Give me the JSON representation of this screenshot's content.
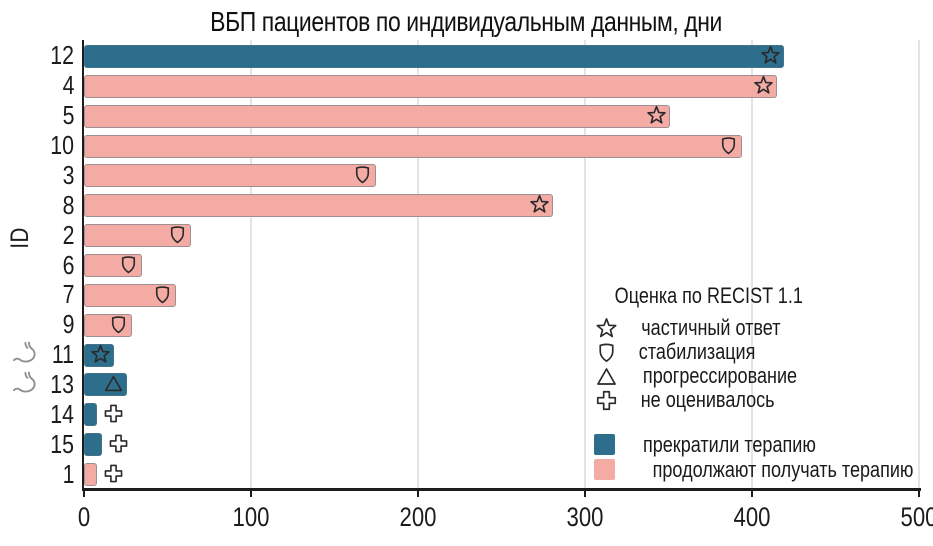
{
  "chart_data": {
    "type": "bar",
    "orientation": "horizontal",
    "title": "ВБП пациентов по индивидуальным данным, дни",
    "ylabel": "ID",
    "xlabel": "",
    "xlim": [
      0,
      500
    ],
    "x_ticks": [
      0,
      100,
      200,
      300,
      400,
      500
    ],
    "grid": "vertical-light",
    "legend_position": "center-right",
    "colors": {
      "discontinued": "#2e6e8d",
      "continuing": "#f3aba4",
      "bar_border": "#567886",
      "grid": "#e4e4e4",
      "axis": "#1c1c1c",
      "marker_stroke": "#2a2a2a",
      "stomach_icon": "#8f8f8f"
    },
    "legend": {
      "title": "Оценка по RECIST 1.1",
      "markers": [
        {
          "icon": "star-icon",
          "shape": "star",
          "label": "частичный ответ"
        },
        {
          "icon": "shield-icon",
          "shape": "shield",
          "label": "стабилизация"
        },
        {
          "icon": "triangle-icon",
          "shape": "triangle",
          "label": "прогрессирование"
        },
        {
          "icon": "cross-icon",
          "shape": "cross",
          "label": "не оценивалось"
        }
      ],
      "series": [
        {
          "color": "#2e6e8d",
          "label": "прекратили терапию"
        },
        {
          "color": "#f3aba4",
          "label": "продолжают получать терапию"
        }
      ]
    },
    "bars": [
      {
        "id": "12",
        "value": 419,
        "group": "прекратили терапию",
        "color": "#2e6e8d",
        "marker": "star",
        "marker_inside": true,
        "stomach_icon": false
      },
      {
        "id": "4",
        "value": 415,
        "group": "продолжают получать терапию",
        "color": "#f3aba4",
        "marker": "star",
        "marker_inside": true,
        "stomach_icon": false
      },
      {
        "id": "5",
        "value": 351,
        "group": "продолжают получать терапию",
        "color": "#f3aba4",
        "marker": "star",
        "marker_inside": true,
        "stomach_icon": false
      },
      {
        "id": "10",
        "value": 394,
        "group": "продолжают получать терапию",
        "color": "#f3aba4",
        "marker": "shield",
        "marker_inside": true,
        "stomach_icon": false
      },
      {
        "id": "3",
        "value": 175,
        "group": "продолжают получать терапию",
        "color": "#f3aba4",
        "marker": "shield",
        "marker_inside": true,
        "stomach_icon": false
      },
      {
        "id": "8",
        "value": 281,
        "group": "продолжают получать терапию",
        "color": "#f3aba4",
        "marker": "star",
        "marker_inside": true,
        "stomach_icon": false
      },
      {
        "id": "2",
        "value": 64,
        "group": "продолжают получать терапию",
        "color": "#f3aba4",
        "marker": "shield",
        "marker_inside": true,
        "stomach_icon": false
      },
      {
        "id": "6",
        "value": 35,
        "group": "продолжают получать терапию",
        "color": "#f3aba4",
        "marker": "shield",
        "marker_inside": true,
        "stomach_icon": false
      },
      {
        "id": "7",
        "value": 55,
        "group": "продолжают получать терапию",
        "color": "#f3aba4",
        "marker": "shield",
        "marker_inside": true,
        "stomach_icon": false
      },
      {
        "id": "9",
        "value": 29,
        "group": "продолжают получать терапию",
        "color": "#f3aba4",
        "marker": "shield",
        "marker_inside": true,
        "stomach_icon": false
      },
      {
        "id": "11",
        "value": 18,
        "group": "прекратили терапию",
        "color": "#2e6e8d",
        "marker": "star",
        "marker_inside": true,
        "stomach_icon": true
      },
      {
        "id": "13",
        "value": 26,
        "group": "прекратили терапию",
        "color": "#2e6e8d",
        "marker": "triangle",
        "marker_inside": true,
        "stomach_icon": true
      },
      {
        "id": "14",
        "value": 8,
        "group": "прекратили терапию",
        "color": "#2e6e8d",
        "marker": "cross",
        "marker_inside": false,
        "stomach_icon": false
      },
      {
        "id": "15",
        "value": 11,
        "group": "прекратили терапию",
        "color": "#2e6e8d",
        "marker": "cross",
        "marker_inside": false,
        "stomach_icon": false
      },
      {
        "id": "1",
        "value": 8,
        "group": "продолжают получать терапию",
        "color": "#f3aba4",
        "marker": "cross",
        "marker_inside": false,
        "stomach_icon": false
      }
    ]
  }
}
